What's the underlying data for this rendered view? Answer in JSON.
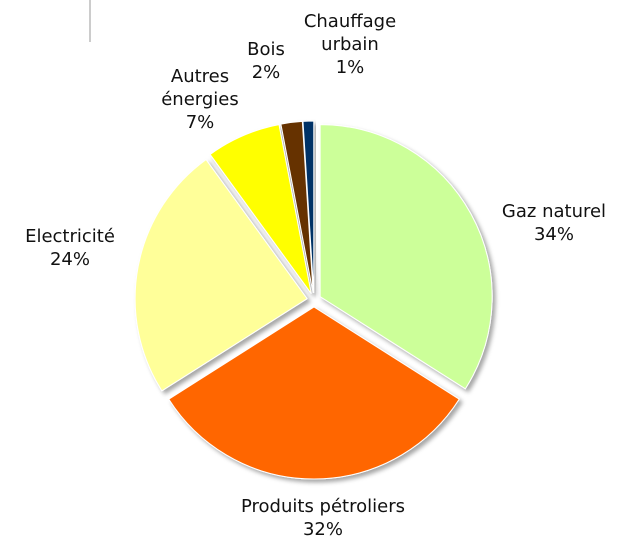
{
  "chart_data": {
    "type": "pie",
    "categories": [
      "Gaz naturel",
      "Produits pétroliers",
      "Electricité",
      "Autres énergies",
      "Bois",
      "Chauffage urbain"
    ],
    "values": [
      34,
      32,
      24,
      7,
      2,
      1
    ],
    "value_labels": [
      "34%",
      "32%",
      "24%",
      "7%",
      "2%",
      "1%"
    ],
    "colors": [
      "#ccff99",
      "#ff6600",
      "#ffff99",
      "#ffff00",
      "#663300",
      "#003366"
    ]
  }
}
